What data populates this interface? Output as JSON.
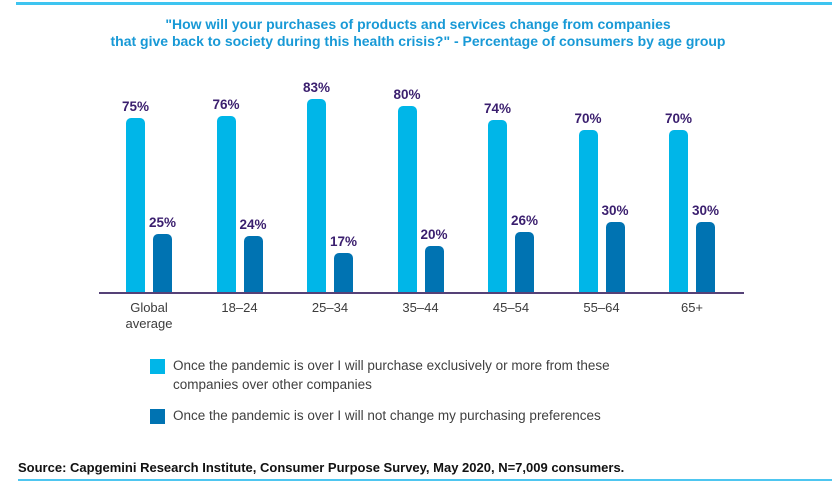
{
  "page": {
    "top_rule_color": "#3EC4F0",
    "bottom_rule_color": "#4EC6F0"
  },
  "title": {
    "line1": "\"How will your purchases of products and services change from companies",
    "line2": "that give back to society during this health crisis?\" - Percentage of consumers by age group",
    "color": "#1899D6"
  },
  "chart_data": {
    "type": "bar",
    "title": "\"How will your purchases of products and services change from companies that give back to society during this health crisis?\" - Percentage of consumers by age group",
    "categories": [
      "Global average",
      "18–24",
      "25–34",
      "35–44",
      "45–54",
      "55–64",
      "65+"
    ],
    "series": [
      {
        "name": "Once the pandemic is over I will purchase exclusively or more from these companies over other companies",
        "color": "#00B6E8",
        "values": [
          75,
          76,
          83,
          80,
          74,
          70,
          70
        ]
      },
      {
        "name": "Once the pandemic is over I will not change my purchasing preferences",
        "color": "#0073B2",
        "values": [
          25,
          24,
          17,
          20,
          26,
          30,
          30
        ]
      }
    ],
    "value_suffix": "%",
    "value_label_color": "#3A1E6E",
    "axis_line_color": "#554177",
    "xlabel": "",
    "ylabel": "",
    "ylim": [
      0,
      100
    ],
    "grid": false,
    "legend_position": "bottom"
  },
  "legend": {
    "items": [
      {
        "label": "Once the pandemic is over I will purchase exclusively or more from these companies over other companies",
        "color": "#00B6E8"
      },
      {
        "label": "Once the pandemic is over I will not change my purchasing preferences",
        "color": "#0073B2"
      }
    ]
  },
  "source": {
    "text": "Source: Capgemini Research Institute, Consumer Purpose Survey, May 2020, N=7,009 consumers."
  }
}
